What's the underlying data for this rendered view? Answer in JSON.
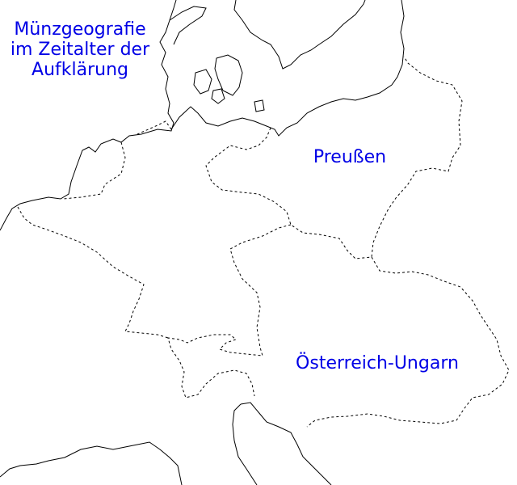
{
  "map": {
    "title_lines": [
      "Münzgeografie",
      "im Zeitalter der",
      "Aufklärung"
    ],
    "regions": {
      "prussia": "Preußen",
      "austria_hungary": "Österreich-Ungarn"
    },
    "label_color": "#0000e6",
    "line_color": "#000000"
  }
}
